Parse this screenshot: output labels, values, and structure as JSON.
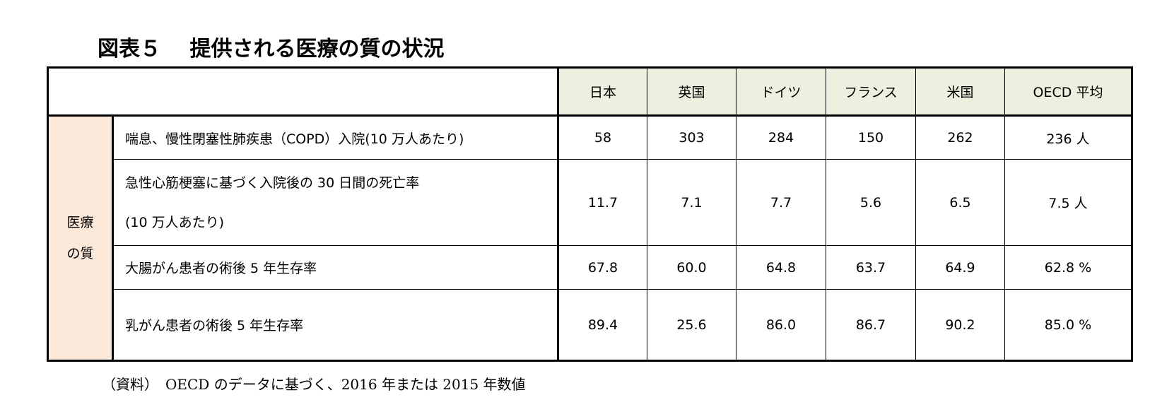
{
  "title": "図表５　 提供される医療の質の状況",
  "table": {
    "header": [
      "日本",
      "英国",
      "ドイツ",
      "フランス",
      "米国",
      "OECD 平均"
    ],
    "group": [
      "医療",
      "の質"
    ],
    "rows": [
      {
        "label": [
          "喘息、慢性閉塞性肺疾患（COPD）入院(10 万人あたり)"
        ],
        "values": [
          "58",
          "303",
          "284",
          "150",
          "262",
          "236 人"
        ]
      },
      {
        "label": [
          "急性心筋梗塞に基づく入院後の 30 日間の死亡率",
          "(10 万人あたり)"
        ],
        "values": [
          "11.7",
          "7.1",
          "7.7",
          "5.6",
          "6.5",
          "7.5 人"
        ]
      },
      {
        "label": [
          "大腸がん患者の術後 5 年生存率"
        ],
        "values": [
          "67.8",
          "60.0",
          "64.8",
          "63.7",
          "64.9",
          "62.8 %"
        ]
      },
      {
        "label": [
          "乳がん患者の術後 5 年生存率"
        ],
        "values": [
          "89.4",
          "25.6",
          "86.0",
          "86.7",
          "90.2",
          "85.0 %"
        ]
      }
    ]
  },
  "note": "（資料）　OECD のデータに基づく、2016 年または 2015 年数値"
}
